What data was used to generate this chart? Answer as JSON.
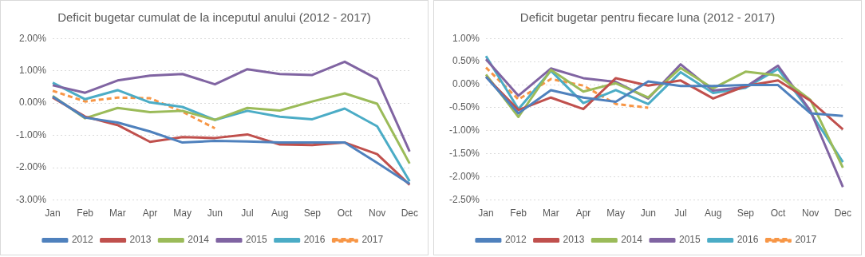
{
  "chart_data": [
    {
      "type": "line",
      "title": "Deficit bugetar cumulat de la inceputul anului (2012 - 2017)",
      "categories": [
        "Jan",
        "Feb",
        "Mar",
        "Apr",
        "May",
        "Jun",
        "Jul",
        "Aug",
        "Sep",
        "Oct",
        "Nov",
        "Dec"
      ],
      "series": [
        {
          "name": "2012",
          "color": "#4f81bd",
          "values": [
            0.2,
            -0.45,
            -0.6,
            -0.88,
            -1.22,
            -1.17,
            -1.19,
            -1.22,
            -1.22,
            -1.22,
            -1.85,
            -2.5
          ]
        },
        {
          "name": "2013",
          "color": "#c0504d",
          "values": [
            0.17,
            -0.42,
            -0.68,
            -1.2,
            -1.05,
            -1.08,
            -0.97,
            -1.28,
            -1.3,
            -1.22,
            -1.58,
            -2.53
          ]
        },
        {
          "name": "2014",
          "color": "#9bbb59",
          "values": [
            0.22,
            -0.47,
            -0.15,
            -0.28,
            -0.24,
            -0.52,
            -0.15,
            -0.23,
            0.05,
            0.3,
            -0.02,
            -1.87
          ]
        },
        {
          "name": "2015",
          "color": "#8064a2",
          "values": [
            0.55,
            0.32,
            0.7,
            0.85,
            0.9,
            0.58,
            1.05,
            0.9,
            0.87,
            1.28,
            0.75,
            -1.5
          ]
        },
        {
          "name": "2016",
          "color": "#4bacc6",
          "values": [
            0.63,
            0.12,
            0.4,
            0.02,
            -0.12,
            -0.52,
            -0.24,
            -0.42,
            -0.5,
            -0.17,
            -0.72,
            -2.42
          ]
        },
        {
          "name": "2017",
          "color": "#f79646",
          "line_style": "dashed",
          "values": [
            0.38,
            0.05,
            0.17,
            0.15,
            -0.27,
            -0.78,
            null,
            null,
            null,
            null,
            null,
            null
          ]
        }
      ],
      "ylim": [
        -3,
        2
      ],
      "yticks": [
        {
          "value": -3,
          "label": "-3.00%"
        },
        {
          "value": -2,
          "label": "-2.00%"
        },
        {
          "value": -1,
          "label": "-1.00%"
        },
        {
          "value": 0,
          "label": "0.00%"
        },
        {
          "value": 1,
          "label": "1.00%"
        },
        {
          "value": 2,
          "label": "2.00%"
        }
      ],
      "grid": "y",
      "legend": "bottom",
      "marker": "none",
      "line_style": "solid"
    },
    {
      "type": "line",
      "title": "Deficit bugetar pentru fiecare luna (2012 - 2017)",
      "categories": [
        "Jan",
        "Feb",
        "Mar",
        "Apr",
        "May",
        "Jun",
        "Jul",
        "Aug",
        "Sep",
        "Oct",
        "Nov",
        "Dec"
      ],
      "series": [
        {
          "name": "2012",
          "color": "#4f81bd",
          "values": [
            0.17,
            -0.62,
            -0.12,
            -0.28,
            -0.37,
            0.07,
            -0.03,
            -0.03,
            -0.01,
            -0.01,
            -0.62,
            -0.68
          ]
        },
        {
          "name": "2013",
          "color": "#c0504d",
          "values": [
            0.17,
            -0.55,
            -0.28,
            -0.53,
            0.14,
            -0.02,
            0.09,
            -0.3,
            -0.03,
            0.09,
            -0.35,
            -0.97
          ]
        },
        {
          "name": "2014",
          "color": "#9bbb59",
          "values": [
            0.22,
            -0.7,
            0.32,
            -0.15,
            0.03,
            -0.28,
            0.36,
            -0.08,
            0.28,
            0.2,
            -0.33,
            -1.8
          ]
        },
        {
          "name": "2015",
          "color": "#8064a2",
          "values": [
            0.55,
            -0.24,
            0.35,
            0.14,
            0.06,
            -0.3,
            0.44,
            -0.13,
            -0.05,
            0.41,
            -0.57,
            -2.22
          ]
        },
        {
          "name": "2016",
          "color": "#4bacc6",
          "values": [
            0.62,
            -0.53,
            0.3,
            -0.4,
            -0.12,
            -0.42,
            0.27,
            -0.18,
            -0.07,
            0.34,
            -0.6,
            -1.68
          ]
        },
        {
          "name": "2017",
          "color": "#f79646",
          "line_style": "dashed",
          "values": [
            0.37,
            -0.32,
            0.12,
            -0.02,
            -0.42,
            -0.5,
            null,
            null,
            null,
            null,
            null,
            null
          ]
        }
      ],
      "ylim": [
        -2.5,
        1
      ],
      "yticks": [
        {
          "value": -2.5,
          "label": "-2.50%"
        },
        {
          "value": -2,
          "label": "-2.00%"
        },
        {
          "value": -1.5,
          "label": "-1.50%"
        },
        {
          "value": -1,
          "label": "-1.00%"
        },
        {
          "value": -0.5,
          "label": "-0.50%"
        },
        {
          "value": 0,
          "label": "0.00%"
        },
        {
          "value": 0.5,
          "label": "0.50%"
        },
        {
          "value": 1,
          "label": "1.00%"
        }
      ],
      "grid": "y",
      "legend": "bottom",
      "marker": "none",
      "line_style": "solid"
    }
  ]
}
